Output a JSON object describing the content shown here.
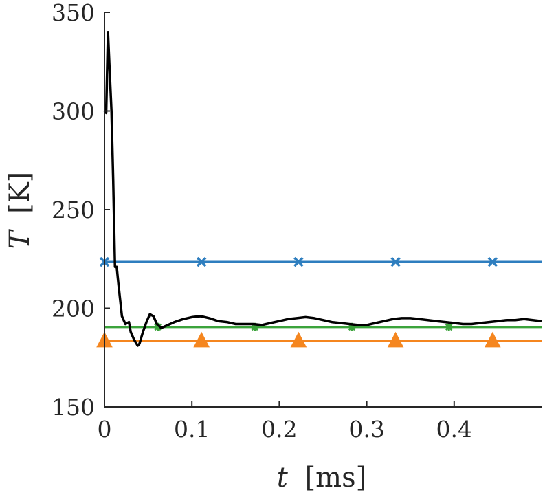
{
  "chart_data": {
    "type": "line",
    "xlabel_var": "t",
    "xlabel_unit": "[ms]",
    "ylabel_var": "T",
    "ylabel_unit": "[K]",
    "xlim": [
      0,
      0.5
    ],
    "ylim": [
      150,
      350
    ],
    "x_ticks": [
      0,
      0.1,
      0.2,
      0.3,
      0.4
    ],
    "x_tick_labels": [
      "0",
      "0.1",
      "0.2",
      "0.3",
      "0.4"
    ],
    "y_ticks": [
      150,
      200,
      250,
      300,
      350
    ],
    "y_tick_labels": [
      "150",
      "200",
      "250",
      "300",
      "350"
    ],
    "grid": false,
    "legend": "none",
    "series": [
      {
        "color": "#000000",
        "marker": "none",
        "x": [
          0,
          0.002,
          0.004,
          0.006,
          0.008,
          0.01,
          0.012,
          0.014,
          0.016,
          0.018,
          0.02,
          0.024,
          0.028,
          0.03,
          0.034,
          0.038,
          0.04,
          0.044,
          0.048,
          0.052,
          0.056,
          0.06,
          0.065,
          0.07,
          0.08,
          0.09,
          0.1,
          0.11,
          0.12,
          0.13,
          0.14,
          0.15,
          0.16,
          0.17,
          0.18,
          0.19,
          0.2,
          0.21,
          0.22,
          0.23,
          0.24,
          0.25,
          0.26,
          0.27,
          0.28,
          0.29,
          0.3,
          0.31,
          0.32,
          0.33,
          0.34,
          0.35,
          0.36,
          0.37,
          0.38,
          0.39,
          0.4,
          0.41,
          0.42,
          0.43,
          0.44,
          0.45,
          0.46,
          0.47,
          0.48,
          0.49,
          0.5
        ],
        "y": [
          300,
          299,
          340,
          320,
          300,
          265,
          221,
          221,
          212,
          204,
          196,
          192,
          193,
          188,
          184,
          181,
          182,
          188,
          193,
          197,
          196,
          192,
          190,
          191,
          193,
          194.5,
          195.5,
          196,
          195,
          193.5,
          193,
          192,
          192,
          192,
          191.5,
          192.5,
          193.5,
          194.5,
          195,
          195.5,
          195,
          194,
          193,
          192.5,
          192,
          191.5,
          191.5,
          192.5,
          193.5,
          194.5,
          195,
          195,
          194.5,
          194,
          193.5,
          193,
          192.5,
          192,
          192,
          192.5,
          193,
          193.5,
          194,
          194,
          194.5,
          194,
          193.5
        ]
      },
      {
        "color": "#2E7EBF",
        "marker": "x",
        "x": [
          0,
          0.5
        ],
        "y": [
          223.5,
          223.5
        ],
        "marker_x": [
          0,
          0.111,
          0.222,
          0.333,
          0.444
        ]
      },
      {
        "color": "#3BA33B",
        "marker": "*",
        "x": [
          0,
          0.5
        ],
        "y": [
          190.5,
          190.5
        ],
        "marker_x": [
          0.061,
          0.172,
          0.283,
          0.394
        ]
      },
      {
        "color": "#F5861F",
        "marker": "triangle",
        "x": [
          0,
          0.5
        ],
        "y": [
          183.5,
          183.5
        ],
        "marker_x": [
          0,
          0.111,
          0.222,
          0.333,
          0.444
        ]
      }
    ]
  }
}
